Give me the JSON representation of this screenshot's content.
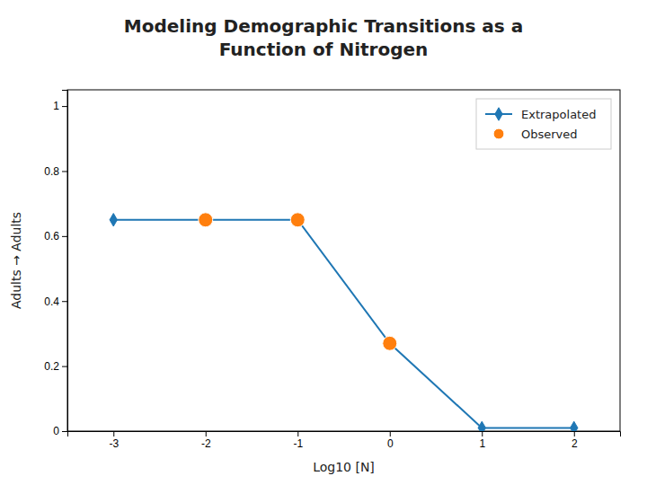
{
  "chart_data": {
    "type": "line",
    "title": "Modeling Demographic Transitions as a\nFunction of Nitrogen",
    "xlabel": "Log10 [N]",
    "ylabel": "Adults → Adults",
    "x": [
      -3,
      -2,
      -1,
      0,
      1,
      2
    ],
    "series": [
      {
        "name": "Extrapolated",
        "type": "line",
        "marker": "diamond",
        "values": [
          0.65,
          0.65,
          0.65,
          0.27,
          0.01,
          0.01
        ]
      },
      {
        "name": "Observed",
        "type": "scatter",
        "marker": "circle",
        "values": [
          null,
          0.65,
          0.65,
          0.27,
          null,
          null
        ]
      }
    ],
    "xlim": [
      -3.5,
      2.5
    ],
    "ylim": [
      0,
      1.05
    ],
    "xticks": [
      -3,
      -2,
      -1,
      0,
      1,
      2
    ],
    "yticks": [
      0,
      0.2,
      0.4,
      0.6,
      0.8,
      1
    ],
    "grid": false,
    "legend": "upper right"
  }
}
